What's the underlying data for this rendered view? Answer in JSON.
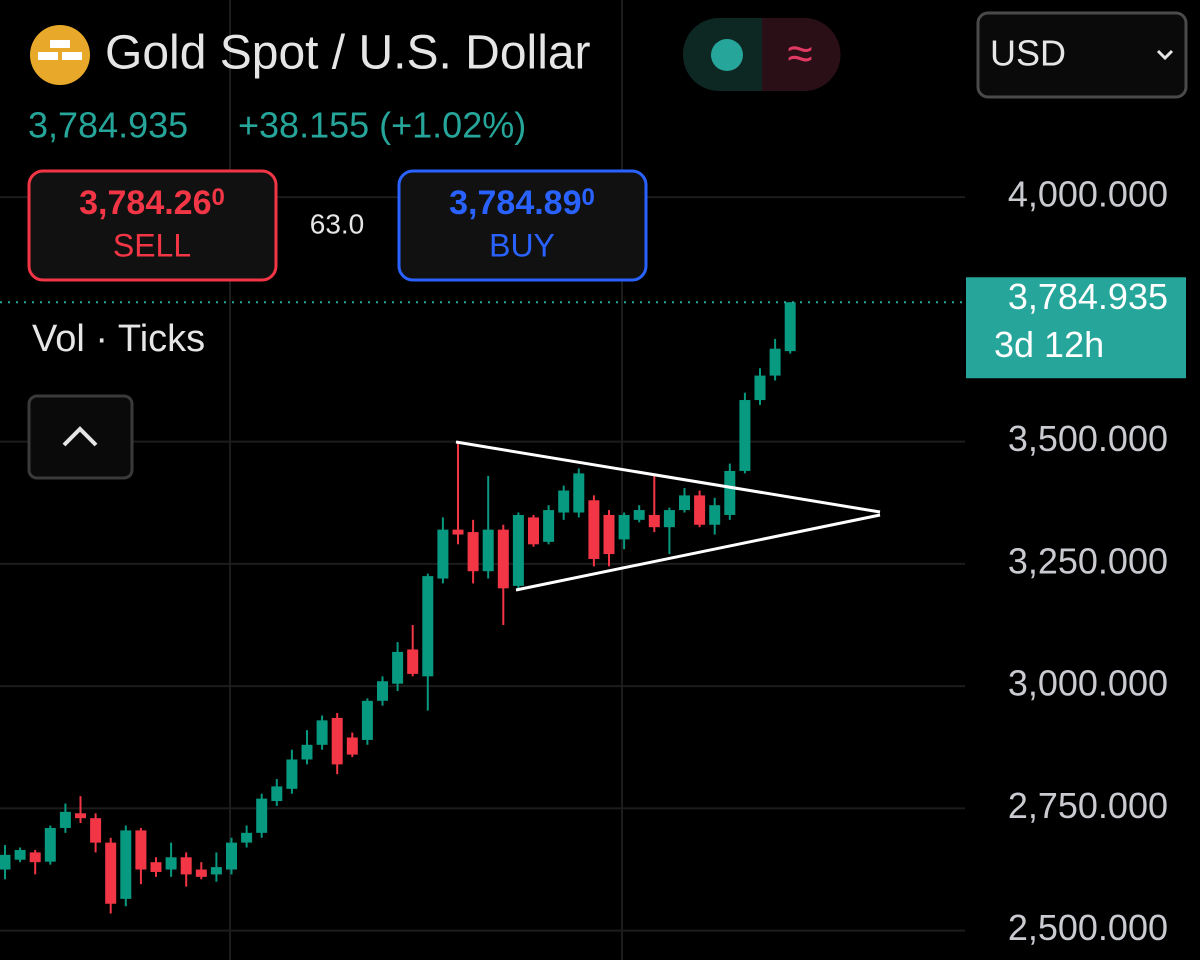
{
  "header": {
    "title": "Gold Spot / U.S. Dollar",
    "wave_symbol": "≈",
    "currency": "USD",
    "last_price": "3,784.935",
    "change": "+38.155 (+1.02%)",
    "sell": {
      "price": "3,784.26",
      "pip": "0",
      "label": "SELL"
    },
    "spread": "63.0",
    "buy": {
      "price": "3,784.89",
      "pip": "0",
      "label": "BUY"
    },
    "indicator": "Vol · Ticks"
  },
  "chart_data": {
    "type": "candlestick",
    "up_color": "#089981",
    "down_color": "#f23645",
    "grid": true,
    "categories": [
      null,
      null,
      null,
      null,
      null,
      null,
      null,
      null,
      null,
      null,
      null,
      null,
      null,
      null,
      null,
      null,
      null,
      null,
      null,
      null,
      null,
      null,
      null,
      null,
      null,
      null,
      null,
      null,
      null,
      null,
      null,
      null,
      null,
      null,
      null,
      null,
      null,
      null,
      null,
      null,
      null,
      null,
      null,
      null,
      null,
      null,
      null,
      null,
      null,
      null,
      null,
      null,
      null
    ],
    "open": [
      2625,
      2645,
      2660,
      2641,
      2710,
      2740,
      2730,
      2680,
      2565,
      2705,
      2640,
      2625,
      2650,
      2625,
      2615,
      2625,
      2680,
      2700,
      2765,
      2790,
      2850,
      2880,
      2935,
      2895,
      2890,
      2970,
      3005,
      3075,
      3020,
      3220,
      3320,
      3315,
      3235,
      3320,
      3205,
      3345,
      3295,
      3355,
      3355,
      3380,
      3350,
      3300,
      3340,
      3350,
      3325,
      3360,
      3390,
      3330,
      3350,
      3440,
      3585,
      3635,
      3685
    ],
    "high": [
      2675,
      2670,
      2665,
      2715,
      2760,
      2775,
      2740,
      2690,
      2715,
      2710,
      2650,
      2680,
      2660,
      2640,
      2660,
      2690,
      2715,
      2780,
      2810,
      2870,
      2910,
      2940,
      2945,
      2905,
      2975,
      3020,
      3090,
      3125,
      3230,
      3345,
      3500,
      3340,
      3430,
      3330,
      3355,
      3350,
      3370,
      3410,
      3445,
      3390,
      3360,
      3355,
      3370,
      3430,
      3365,
      3405,
      3400,
      3385,
      3455,
      3600,
      3650,
      3710,
      3785
    ],
    "low": [
      2605,
      2640,
      2615,
      2635,
      2700,
      2720,
      2660,
      2535,
      2550,
      2595,
      2610,
      2610,
      2590,
      2605,
      2600,
      2615,
      2670,
      2690,
      2755,
      2780,
      2840,
      2870,
      2820,
      2855,
      2880,
      2960,
      2990,
      3020,
      2950,
      3210,
      3290,
      3210,
      3220,
      3125,
      3200,
      3285,
      3290,
      3340,
      3345,
      3245,
      3245,
      3280,
      3335,
      3315,
      3270,
      3355,
      3325,
      3310,
      3340,
      3435,
      3575,
      3625,
      3680
    ],
    "close": [
      2655,
      2665,
      2640,
      2710,
      2743,
      2730,
      2680,
      2555,
      2705,
      2625,
      2620,
      2650,
      2615,
      2610,
      2630,
      2680,
      2700,
      2770,
      2795,
      2850,
      2880,
      2930,
      2840,
      2860,
      2970,
      3010,
      3070,
      3025,
      3225,
      3320,
      3310,
      3235,
      3320,
      3200,
      3350,
      3290,
      3360,
      3400,
      3435,
      3260,
      3270,
      3350,
      3360,
      3325,
      3360,
      3390,
      3330,
      3370,
      3440,
      3585,
      3635,
      3690,
      3784.935
    ],
    "ylim": [
      2440,
      4403
    ],
    "yticks": [
      {
        "value": 2500,
        "label": "2,500.000"
      },
      {
        "value": 2750,
        "label": "2,750.000"
      },
      {
        "value": 3000,
        "label": "3,000.000"
      },
      {
        "value": 3250,
        "label": "3,250.000"
      },
      {
        "value": 3500,
        "label": "3,500.000"
      },
      {
        "value": 4000,
        "label": "4,000.000"
      }
    ],
    "price_line": {
      "value": 3784.935,
      "label": "3,784.935",
      "countdown": "3d 12h",
      "color": "#26a69a"
    }
  }
}
